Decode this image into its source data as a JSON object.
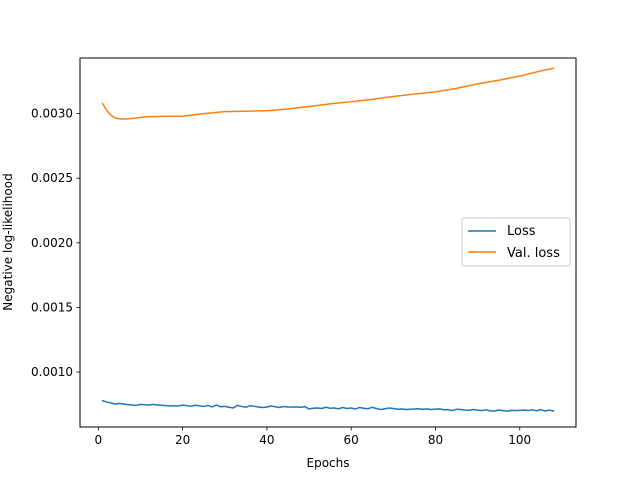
{
  "chart_data": {
    "type": "line",
    "title": "",
    "xlabel": "Epochs",
    "ylabel": "Negative log-likelihood",
    "xlim": [
      -4.35,
      113.35
    ],
    "ylim": [
      0.000575,
      0.00343
    ],
    "xticks": [
      0,
      20,
      40,
      60,
      80,
      100
    ],
    "xtick_labels": [
      "0",
      "20",
      "40",
      "60",
      "80",
      "100"
    ],
    "yticks": [
      0.001,
      0.0015,
      0.002,
      0.0025,
      0.003
    ],
    "ytick_labels": [
      "0.0010",
      "0.0015",
      "0.0020",
      "0.0025",
      "0.0030"
    ],
    "grid": false,
    "legend_position": "center-right",
    "series": [
      {
        "name": "Loss",
        "color": "#1f77b4",
        "x": [
          1,
          2,
          3,
          4,
          5,
          6,
          7,
          8,
          9,
          10,
          11,
          12,
          13,
          14,
          15,
          16,
          17,
          18,
          19,
          20,
          21,
          22,
          23,
          24,
          25,
          26,
          27,
          28,
          29,
          30,
          31,
          32,
          33,
          34,
          35,
          36,
          37,
          38,
          39,
          40,
          41,
          42,
          43,
          44,
          45,
          46,
          47,
          48,
          49,
          50,
          51,
          52,
          53,
          54,
          55,
          56,
          57,
          58,
          59,
          60,
          61,
          62,
          63,
          64,
          65,
          66,
          67,
          68,
          69,
          70,
          71,
          72,
          73,
          74,
          75,
          76,
          77,
          78,
          79,
          80,
          81,
          82,
          83,
          84,
          85,
          86,
          87,
          88,
          89,
          90,
          91,
          92,
          93,
          94,
          95,
          96,
          97,
          98,
          99,
          100,
          101,
          102,
          103,
          104,
          105,
          106,
          107,
          108
        ],
        "values": [
          0.000778,
          0.000768,
          0.000762,
          0.000752,
          0.000758,
          0.000752,
          0.000748,
          0.000745,
          0.000742,
          0.00075,
          0.000747,
          0.000745,
          0.00075,
          0.000745,
          0.000743,
          0.00074,
          0.000738,
          0.000738,
          0.000738,
          0.000744,
          0.00074,
          0.000735,
          0.000744,
          0.000738,
          0.000734,
          0.000742,
          0.00073,
          0.000745,
          0.000732,
          0.000735,
          0.000728,
          0.000722,
          0.000742,
          0.000734,
          0.000728,
          0.00074,
          0.000735,
          0.00073,
          0.000726,
          0.00073,
          0.000738,
          0.000732,
          0.000726,
          0.000734,
          0.00073,
          0.000729,
          0.000731,
          0.000727,
          0.000733,
          0.000715,
          0.00072,
          0.000722,
          0.000718,
          0.000728,
          0.00072,
          0.000722,
          0.000716,
          0.000726,
          0.000718,
          0.000722,
          0.000714,
          0.000726,
          0.00072,
          0.000716,
          0.000728,
          0.000718,
          0.00071,
          0.000716,
          0.000722,
          0.000718,
          0.000712,
          0.000714,
          0.00071,
          0.000712,
          0.000714,
          0.000716,
          0.000712,
          0.000714,
          0.00071,
          0.000713,
          0.000715,
          0.000708,
          0.000709,
          0.000702,
          0.000712,
          0.00071,
          0.000706,
          0.000705,
          0.00071,
          0.000706,
          0.000702,
          0.000708,
          0.0007,
          0.000698,
          0.000706,
          0.000702,
          0.000698,
          0.000704,
          0.000702,
          0.000704,
          0.000706,
          0.000703,
          0.000708,
          0.0007,
          0.00071,
          0.000698,
          0.000706,
          0.000698
        ]
      },
      {
        "name": "Val. loss",
        "color": "#ff7f0e",
        "x": [
          1,
          2,
          3,
          4,
          5,
          6,
          8,
          10,
          12,
          15,
          20,
          25,
          30,
          35,
          40,
          45,
          50,
          55,
          60,
          65,
          70,
          75,
          80,
          85,
          90,
          95,
          100,
          105,
          108
        ],
        "values": [
          0.003078,
          0.003025,
          0.002987,
          0.002966,
          0.00296,
          0.002958,
          0.002962,
          0.002971,
          0.002976,
          0.002978,
          0.00298,
          0.003,
          0.003015,
          0.003018,
          0.003022,
          0.003035,
          0.003055,
          0.003075,
          0.003092,
          0.00311,
          0.003132,
          0.003151,
          0.003168,
          0.003195,
          0.00323,
          0.003258,
          0.00329,
          0.00333,
          0.00335
        ]
      }
    ]
  }
}
